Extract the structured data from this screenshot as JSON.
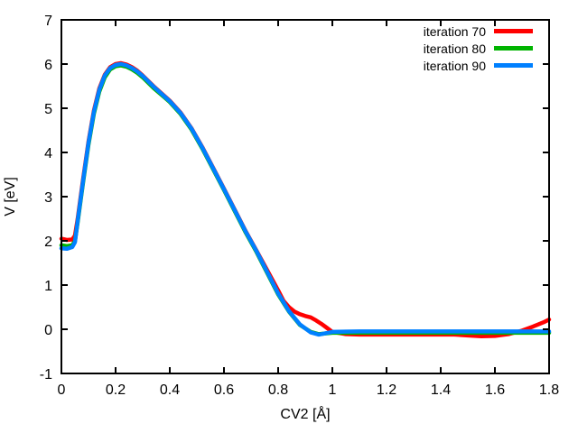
{
  "chart_data": {
    "type": "line",
    "title": "",
    "xlabel": "CV2 [Å]",
    "ylabel": "V [eV]",
    "xlim": [
      0,
      1.8
    ],
    "ylim": [
      -1,
      7
    ],
    "grid": false,
    "legend_position": "top-right-inside",
    "background_color": "#ffffff",
    "axis_color": "#000000",
    "xticks": [
      {
        "v": 0.0,
        "label": "0"
      },
      {
        "v": 0.2,
        "label": "0.2"
      },
      {
        "v": 0.4,
        "label": "0.4"
      },
      {
        "v": 0.6,
        "label": "0.6"
      },
      {
        "v": 0.8,
        "label": "0.8"
      },
      {
        "v": 1.0,
        "label": "1"
      },
      {
        "v": 1.2,
        "label": "1.2"
      },
      {
        "v": 1.4,
        "label": "1.4"
      },
      {
        "v": 1.6,
        "label": "1.6"
      },
      {
        "v": 1.8,
        "label": "1.8"
      }
    ],
    "yticks": [
      {
        "v": -1,
        "label": "-1"
      },
      {
        "v": 0,
        "label": "0"
      },
      {
        "v": 1,
        "label": "1"
      },
      {
        "v": 2,
        "label": "2"
      },
      {
        "v": 3,
        "label": "3"
      },
      {
        "v": 4,
        "label": "4"
      },
      {
        "v": 5,
        "label": "5"
      },
      {
        "v": 6,
        "label": "6"
      },
      {
        "v": 7,
        "label": "7"
      }
    ],
    "series": [
      {
        "name": "iteration 70",
        "color": "#ff0000",
        "points": [
          [
            0.0,
            2.05
          ],
          [
            0.02,
            2.02
          ],
          [
            0.04,
            2.03
          ],
          [
            0.05,
            2.12
          ],
          [
            0.06,
            2.5
          ],
          [
            0.08,
            3.4
          ],
          [
            0.1,
            4.25
          ],
          [
            0.12,
            4.95
          ],
          [
            0.14,
            5.45
          ],
          [
            0.16,
            5.76
          ],
          [
            0.18,
            5.93
          ],
          [
            0.2,
            6.0
          ],
          [
            0.22,
            6.02
          ],
          [
            0.24,
            5.99
          ],
          [
            0.26,
            5.93
          ],
          [
            0.28,
            5.85
          ],
          [
            0.3,
            5.74
          ],
          [
            0.34,
            5.5
          ],
          [
            0.38,
            5.28
          ],
          [
            0.4,
            5.17
          ],
          [
            0.44,
            4.9
          ],
          [
            0.48,
            4.55
          ],
          [
            0.52,
            4.12
          ],
          [
            0.56,
            3.65
          ],
          [
            0.6,
            3.18
          ],
          [
            0.64,
            2.7
          ],
          [
            0.68,
            2.22
          ],
          [
            0.72,
            1.78
          ],
          [
            0.76,
            1.33
          ],
          [
            0.8,
            0.88
          ],
          [
            0.82,
            0.64
          ],
          [
            0.84,
            0.5
          ],
          [
            0.86,
            0.4
          ],
          [
            0.88,
            0.34
          ],
          [
            0.9,
            0.3
          ],
          [
            0.92,
            0.27
          ],
          [
            0.94,
            0.2
          ],
          [
            0.96,
            0.12
          ],
          [
            0.98,
            0.03
          ],
          [
            1.0,
            -0.06
          ],
          [
            1.05,
            -0.11
          ],
          [
            1.1,
            -0.12
          ],
          [
            1.2,
            -0.12
          ],
          [
            1.3,
            -0.12
          ],
          [
            1.4,
            -0.12
          ],
          [
            1.45,
            -0.12
          ],
          [
            1.5,
            -0.14
          ],
          [
            1.55,
            -0.16
          ],
          [
            1.6,
            -0.15
          ],
          [
            1.65,
            -0.11
          ],
          [
            1.7,
            -0.03
          ],
          [
            1.74,
            0.06
          ],
          [
            1.78,
            0.16
          ],
          [
            1.8,
            0.22
          ]
        ]
      },
      {
        "name": "iteration 80",
        "color": "#00b400",
        "points": [
          [
            0.0,
            1.9
          ],
          [
            0.02,
            1.88
          ],
          [
            0.04,
            1.9
          ],
          [
            0.05,
            2.0
          ],
          [
            0.06,
            2.42
          ],
          [
            0.08,
            3.32
          ],
          [
            0.1,
            4.18
          ],
          [
            0.12,
            4.88
          ],
          [
            0.14,
            5.38
          ],
          [
            0.16,
            5.7
          ],
          [
            0.18,
            5.88
          ],
          [
            0.2,
            5.95
          ],
          [
            0.22,
            5.97
          ],
          [
            0.24,
            5.94
          ],
          [
            0.26,
            5.88
          ],
          [
            0.28,
            5.8
          ],
          [
            0.3,
            5.7
          ],
          [
            0.34,
            5.46
          ],
          [
            0.38,
            5.25
          ],
          [
            0.4,
            5.14
          ],
          [
            0.44,
            4.87
          ],
          [
            0.48,
            4.52
          ],
          [
            0.52,
            4.09
          ],
          [
            0.56,
            3.62
          ],
          [
            0.6,
            3.15
          ],
          [
            0.64,
            2.67
          ],
          [
            0.68,
            2.19
          ],
          [
            0.72,
            1.75
          ],
          [
            0.76,
            1.27
          ],
          [
            0.8,
            0.79
          ],
          [
            0.84,
            0.4
          ],
          [
            0.88,
            0.1
          ],
          [
            0.92,
            -0.06
          ],
          [
            0.95,
            -0.11
          ],
          [
            1.0,
            -0.08
          ],
          [
            1.1,
            -0.08
          ],
          [
            1.4,
            -0.08
          ],
          [
            1.8,
            -0.08
          ]
        ]
      },
      {
        "name": "iteration 90",
        "color": "#0080ff",
        "points": [
          [
            0.0,
            1.83
          ],
          [
            0.02,
            1.82
          ],
          [
            0.04,
            1.86
          ],
          [
            0.05,
            1.97
          ],
          [
            0.06,
            2.45
          ],
          [
            0.08,
            3.36
          ],
          [
            0.1,
            4.22
          ],
          [
            0.12,
            4.92
          ],
          [
            0.14,
            5.42
          ],
          [
            0.16,
            5.74
          ],
          [
            0.18,
            5.91
          ],
          [
            0.2,
            5.98
          ],
          [
            0.22,
            6.0
          ],
          [
            0.24,
            5.97
          ],
          [
            0.26,
            5.91
          ],
          [
            0.28,
            5.83
          ],
          [
            0.3,
            5.73
          ],
          [
            0.34,
            5.49
          ],
          [
            0.38,
            5.27
          ],
          [
            0.4,
            5.16
          ],
          [
            0.44,
            4.89
          ],
          [
            0.48,
            4.54
          ],
          [
            0.52,
            4.11
          ],
          [
            0.56,
            3.64
          ],
          [
            0.6,
            3.17
          ],
          [
            0.64,
            2.69
          ],
          [
            0.68,
            2.21
          ],
          [
            0.72,
            1.77
          ],
          [
            0.76,
            1.29
          ],
          [
            0.8,
            0.81
          ],
          [
            0.84,
            0.41
          ],
          [
            0.88,
            0.11
          ],
          [
            0.92,
            -0.07
          ],
          [
            0.95,
            -0.12
          ],
          [
            1.0,
            -0.06
          ],
          [
            1.1,
            -0.05
          ],
          [
            1.4,
            -0.05
          ],
          [
            1.8,
            -0.05
          ]
        ]
      }
    ]
  }
}
